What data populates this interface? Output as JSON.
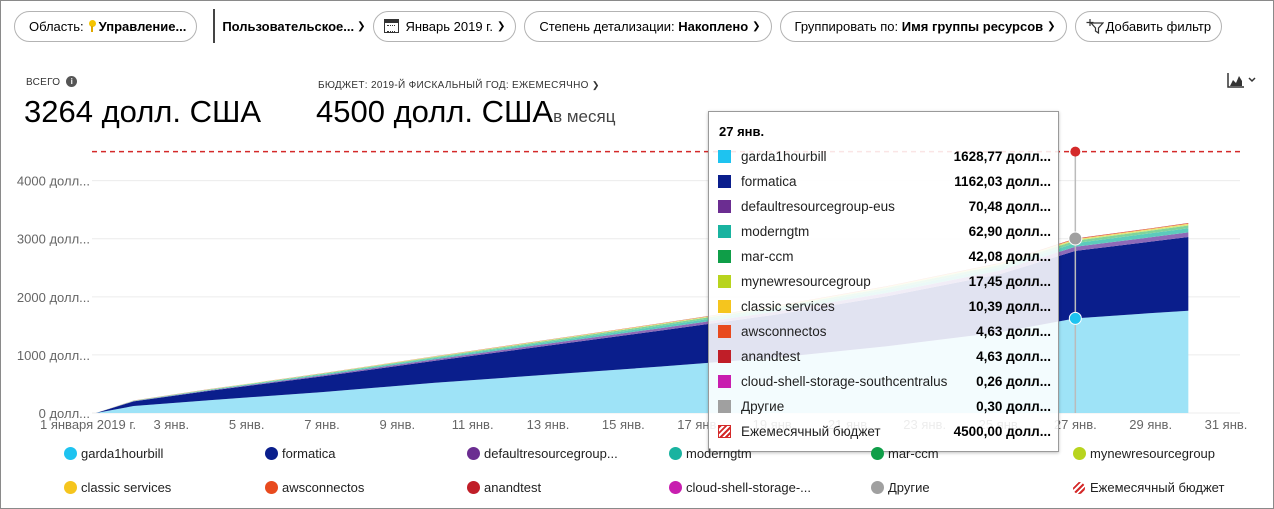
{
  "toolbar": {
    "scope_label": "Область:",
    "scope_value": "Управление...",
    "view_value": "Пользовательское...",
    "date_value": "Январь 2019 г.",
    "granularity_label": "Степень детализации:",
    "granularity_value": "Накоплено",
    "group_label": "Группировать по:",
    "group_value": "Имя группы ресурсов",
    "add_filter_label": "Добавить фильтр"
  },
  "summary": {
    "total_label": "ВСЕГО",
    "total_value": "3264 долл. США",
    "budget_label": "БЮДЖЕТ: 2019-Й ФИСКАЛЬНЫЙ ГОД: ЕЖЕМЕСЯЧНО",
    "budget_value": "4500 долл. США",
    "budget_suffix": "в месяц"
  },
  "chart_data": {
    "type": "area",
    "stacked": true,
    "cumulative": true,
    "ylim": [
      0,
      4700
    ],
    "y_ticks": [
      {
        "value": 0,
        "label": "0 долл..."
      },
      {
        "value": 1000,
        "label": "1000 долл..."
      },
      {
        "value": 2000,
        "label": "2000 долл..."
      },
      {
        "value": 3000,
        "label": "3000 долл..."
      },
      {
        "value": 4000,
        "label": "4000 долл..."
      }
    ],
    "x_domain": [
      1,
      31
    ],
    "x_ticks": [
      {
        "day": 1,
        "label": "1 января 2019 г."
      },
      {
        "day": 3,
        "label": "3 янв."
      },
      {
        "day": 5,
        "label": "5 янв."
      },
      {
        "day": 7,
        "label": "7 янв."
      },
      {
        "day": 9,
        "label": "9 янв."
      },
      {
        "day": 11,
        "label": "11 янв."
      },
      {
        "day": 13,
        "label": "13 янв."
      },
      {
        "day": 15,
        "label": "15 янв."
      },
      {
        "day": 17,
        "label": "17 янв."
      },
      {
        "day": 19,
        "label": "19 янв."
      },
      {
        "day": 21,
        "label": "21 янв."
      },
      {
        "day": 23,
        "label": "23 янв."
      },
      {
        "day": 25,
        "label": "25 янв."
      },
      {
        "day": 27,
        "label": "27 янв."
      },
      {
        "day": 29,
        "label": "29 янв."
      },
      {
        "day": 31,
        "label": "31 янв."
      }
    ],
    "budget_line": {
      "name": "Ежемесячный бюджет",
      "value": 4500,
      "color": "#d42a2a"
    },
    "days": [
      1,
      2,
      4,
      7,
      10,
      13,
      16,
      19,
      22,
      25,
      27,
      29,
      30
    ],
    "series": [
      {
        "name": "garda1hourbill",
        "color": "#1ec3f0",
        "fill": "#9ee3f7",
        "values": [
          0,
          120,
          220,
          360,
          520,
          660,
          800,
          950,
          1150,
          1390,
          1628.77,
          1720,
          1760
        ]
      },
      {
        "name": "formatica",
        "color": "#0a1e8c",
        "fill": "#0a1e8c",
        "values": [
          0,
          80,
          160,
          270,
          380,
          500,
          620,
          740,
          860,
          1000,
          1162.03,
          1230,
          1270
        ]
      },
      {
        "name": "defaultresourcegroup-eus",
        "color": "#6b2d91",
        "fill": "#8e6ab8",
        "values": [
          0,
          5,
          10,
          18,
          26,
          34,
          42,
          50,
          58,
          64,
          70.48,
          76,
          80
        ]
      },
      {
        "name": "moderngtm",
        "color": "#19b3a0",
        "fill": "#5ccbbc",
        "values": [
          0,
          4,
          9,
          16,
          23,
          30,
          37,
          44,
          51,
          57,
          62.9,
          68,
          71
        ]
      },
      {
        "name": "mar-ccm",
        "color": "#0f9e48",
        "fill": "#7fd49c",
        "values": [
          0,
          3,
          6,
          11,
          16,
          21,
          26,
          31,
          36,
          39,
          42.08,
          45,
          47
        ]
      },
      {
        "name": "mynewresourcegroup",
        "color": "#b8d41e",
        "fill": "#d7e67a",
        "values": [
          0,
          1,
          2,
          4,
          6,
          8,
          10,
          12,
          14,
          16,
          17.45,
          19,
          20
        ]
      },
      {
        "name": "classic services",
        "color": "#f5c51e",
        "fill": "#f7d864",
        "values": [
          0,
          1,
          2,
          3,
          4,
          5,
          6,
          7,
          8,
          9,
          10.39,
          11,
          12
        ]
      },
      {
        "name": "awsconnectos",
        "color": "#e84a1e",
        "fill": "#e84a1e",
        "values": [
          0,
          0.3,
          0.6,
          1,
          1.5,
          2,
          2.5,
          3,
          3.5,
          4,
          4.63,
          5,
          5
        ]
      },
      {
        "name": "anandtest",
        "color": "#c01e28",
        "fill": "#c01e28",
        "values": [
          0,
          0.3,
          0.6,
          1,
          1.5,
          2,
          2.5,
          3,
          3.5,
          4,
          4.63,
          5,
          5
        ]
      },
      {
        "name": "cloud-shell-storage-southcentralus",
        "color": "#c81eaf",
        "fill": "#c81eaf",
        "values": [
          0,
          0,
          0.03,
          0.06,
          0.09,
          0.12,
          0.15,
          0.18,
          0.21,
          0.24,
          0.26,
          0.28,
          0.3
        ]
      },
      {
        "name": "Другие",
        "color": "#a0a0a0",
        "fill": "#a0a0a0",
        "values": [
          0,
          0,
          0.03,
          0.07,
          0.1,
          0.14,
          0.17,
          0.21,
          0.24,
          0.27,
          0.3,
          0.32,
          0.34
        ]
      }
    ],
    "hover_day": 27
  },
  "tooltip": {
    "title": "27 янв.",
    "rows": [
      {
        "name": "garda1hourbill",
        "value": "1628,77 долл...",
        "color": "#1ec3f0"
      },
      {
        "name": "formatica",
        "value": "1162,03 долл...",
        "color": "#0a1e8c"
      },
      {
        "name": "defaultresourcegroup-eus",
        "value": "70,48 долл...",
        "color": "#6b2d91"
      },
      {
        "name": "moderngtm",
        "value": "62,90 долл...",
        "color": "#19b3a0"
      },
      {
        "name": "mar-ccm",
        "value": "42,08 долл...",
        "color": "#0f9e48"
      },
      {
        "name": "mynewresourcegroup",
        "value": "17,45 долл...",
        "color": "#b8d41e"
      },
      {
        "name": "classic services",
        "value": "10,39 долл...",
        "color": "#f5c51e"
      },
      {
        "name": "awsconnectos",
        "value": "4,63 долл...",
        "color": "#e84a1e"
      },
      {
        "name": "anandtest",
        "value": "4,63 долл...",
        "color": "#c01e28"
      },
      {
        "name": "cloud-shell-storage-southcentralus",
        "value": "0,26 долл...",
        "color": "#c81eaf"
      },
      {
        "name": "Другие",
        "value": "0,30 долл...",
        "color": "#a0a0a0"
      },
      {
        "name": "Ежемесячный бюджет",
        "value": "4500,00 долл...",
        "color": "#d42a2a",
        "hatched": true
      }
    ]
  },
  "legend": [
    {
      "name": "garda1hourbill",
      "color": "#1ec3f0"
    },
    {
      "name": "formatica",
      "color": "#0a1e8c"
    },
    {
      "name": "defaultresourcegroup...",
      "color": "#6b2d91"
    },
    {
      "name": "moderngtm",
      "color": "#19b3a0"
    },
    {
      "name": "mar-ccm",
      "color": "#0f9e48"
    },
    {
      "name": "mynewresourcegroup",
      "color": "#b8d41e"
    },
    {
      "name": "classic services",
      "color": "#f5c51e"
    },
    {
      "name": "awsconnectos",
      "color": "#e84a1e"
    },
    {
      "name": "anandtest",
      "color": "#c01e28"
    },
    {
      "name": "cloud-shell-storage-...",
      "color": "#c81eaf"
    },
    {
      "name": "Другие",
      "color": "#a0a0a0"
    },
    {
      "name": "Ежемесячный бюджет",
      "color": "#d42a2a",
      "hatched": true
    }
  ]
}
